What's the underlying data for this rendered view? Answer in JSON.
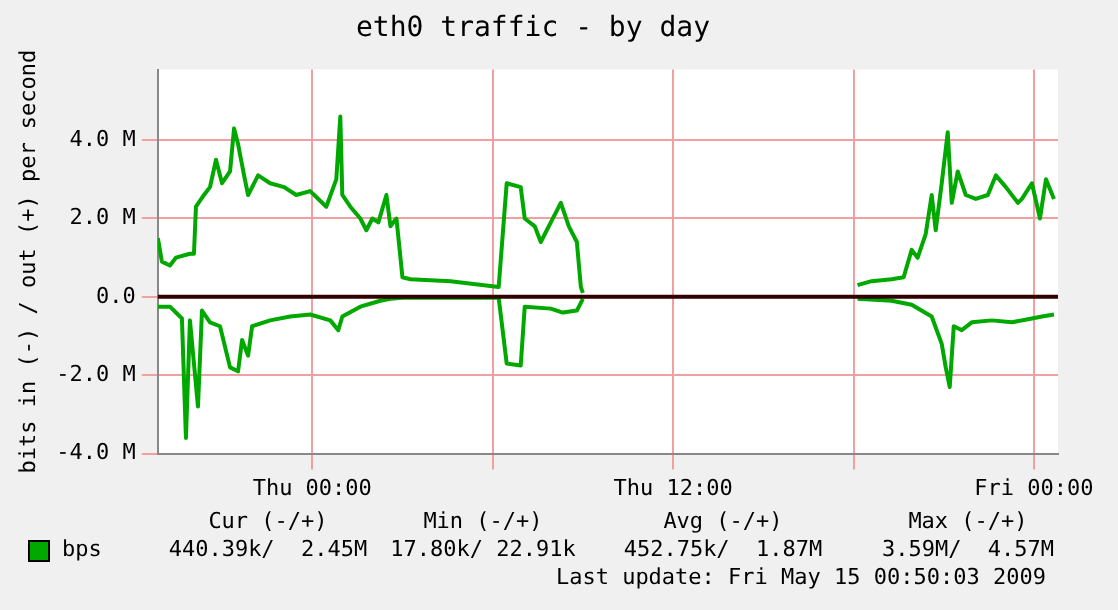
{
  "chart_data": {
    "type": "line",
    "title": "eth0 traffic - by day",
    "ylabel": "bits in (-) / out (+) per second",
    "xlim": [
      "2009-05-13T18:52",
      "2009-05-15T00:48"
    ],
    "xticks": [
      {
        "value": "2009-05-14T00:00",
        "label": "Thu 00:00"
      },
      {
        "value": "2009-05-14T06:00",
        "label": null
      },
      {
        "value": "2009-05-14T12:00",
        "label": "Thu 12:00"
      },
      {
        "value": "2009-05-14T18:00",
        "label": null
      },
      {
        "value": "2009-05-15T00:00",
        "label": "Fri 00:00"
      }
    ],
    "ylim": [
      -4,
      5.8
    ],
    "yticks": [
      {
        "value": -4,
        "label": "-4.0 M"
      },
      {
        "value": -2,
        "label": "-2.0 M"
      },
      {
        "value": 0,
        "label": "0.0"
      },
      {
        "value": 2,
        "label": "2.0 M"
      },
      {
        "value": 4,
        "label": "4.0 M"
      }
    ],
    "grid": true,
    "legend": "bottom",
    "marker": "none",
    "line_style": "solid",
    "series": [
      {
        "name": "bps",
        "color": "#00a800",
        "x": [
          "2009-05-13T18:52",
          "2009-05-13T19:00",
          "2009-05-13T19:16",
          "2009-05-13T19:28",
          "2009-05-13T19:56",
          "2009-05-13T20:04",
          "2009-05-13T20:08",
          "2009-05-13T20:24",
          "2009-05-13T20:36",
          "2009-05-13T20:48",
          "2009-05-13T21:00",
          "2009-05-13T21:16",
          "2009-05-13T21:24",
          "2009-05-13T21:32",
          "2009-05-13T21:44",
          "2009-05-13T21:52",
          "2009-05-13T22:12",
          "2009-05-13T22:36",
          "2009-05-13T23:04",
          "2009-05-13T23:28",
          "2009-05-13T23:56",
          "2009-05-14T00:28",
          "2009-05-14T00:48",
          "2009-05-14T00:56",
          "2009-05-14T01:00",
          "2009-05-14T01:16",
          "2009-05-14T01:36",
          "2009-05-14T01:48",
          "2009-05-14T02:00",
          "2009-05-14T02:12",
          "2009-05-14T02:28",
          "2009-05-14T02:36",
          "2009-05-14T02:48",
          "2009-05-14T03:00",
          "2009-05-14T03:16",
          "2009-05-14T04:36",
          "2009-05-14T06:12",
          "2009-05-14T06:28",
          "2009-05-14T06:56",
          "2009-05-14T07:04",
          "2009-05-14T07:24",
          "2009-05-14T07:36",
          "2009-05-14T07:56",
          "2009-05-14T08:16",
          "2009-05-14T08:32",
          "2009-05-14T08:48",
          "2009-05-14T08:56",
          "2009-05-14T09:00",
          "2009-05-14T13:00",
          "2009-05-14T18:08",
          "2009-05-14T18:36",
          "2009-05-14T19:16",
          "2009-05-14T19:40",
          "2009-05-14T19:56",
          "2009-05-14T20:08",
          "2009-05-14T20:24",
          "2009-05-14T20:36",
          "2009-05-14T20:44",
          "2009-05-14T20:56",
          "2009-05-14T21:08",
          "2009-05-14T21:16",
          "2009-05-14T21:28",
          "2009-05-14T21:44",
          "2009-05-14T22:04",
          "2009-05-14T22:28",
          "2009-05-14T22:44",
          "2009-05-14T23:04",
          "2009-05-14T23:28",
          "2009-05-14T23:36",
          "2009-05-14T23:56",
          "2009-05-15T00:12",
          "2009-05-15T00:24",
          "2009-05-15T00:40"
        ],
        "values": [
          1.5,
          0.9,
          0.8,
          1.0,
          1.1,
          1.1,
          2.3,
          2.6,
          2.8,
          3.5,
          2.9,
          3.2,
          4.3,
          3.9,
          3.1,
          2.6,
          3.1,
          2.9,
          2.8,
          2.6,
          2.7,
          2.3,
          3.0,
          4.6,
          2.6,
          2.3,
          2.0,
          1.7,
          2.0,
          1.9,
          2.6,
          1.8,
          2.0,
          0.5,
          0.45,
          0.4,
          0.25,
          2.9,
          2.8,
          2.0,
          1.8,
          1.4,
          1.9,
          2.4,
          1.8,
          1.4,
          0.25,
          0.1,
          null,
          0.3,
          0.4,
          0.45,
          0.5,
          1.2,
          1.0,
          1.6,
          2.6,
          1.7,
          2.9,
          4.2,
          2.4,
          3.2,
          2.6,
          2.5,
          2.6,
          3.1,
          2.8,
          2.4,
          2.5,
          2.9,
          2.0,
          3.0,
          2.5
        ]
      },
      {
        "color": "#00a800",
        "x": [
          "2009-05-13T18:52",
          "2009-05-13T19:16",
          "2009-05-13T19:32",
          "2009-05-13T19:40",
          "2009-05-13T19:48",
          "2009-05-13T19:56",
          "2009-05-13T20:12",
          "2009-05-13T20:20",
          "2009-05-13T20:36",
          "2009-05-13T20:56",
          "2009-05-13T21:16",
          "2009-05-13T21:32",
          "2009-05-13T21:40",
          "2009-05-13T21:52",
          "2009-05-13T22:00",
          "2009-05-13T22:36",
          "2009-05-13T23:16",
          "2009-05-13T23:56",
          "2009-05-14T00:36",
          "2009-05-14T00:52",
          "2009-05-14T01:00",
          "2009-05-14T01:36",
          "2009-05-14T02:16",
          "2009-05-14T02:36",
          "2009-05-14T03:00",
          "2009-05-14T06:12",
          "2009-05-14T06:28",
          "2009-05-14T06:56",
          "2009-05-14T07:04",
          "2009-05-14T07:56",
          "2009-05-14T08:20",
          "2009-05-14T08:48",
          "2009-05-14T09:00",
          "2009-05-14T13:00",
          "2009-05-14T18:08",
          "2009-05-14T19:16",
          "2009-05-14T19:56",
          "2009-05-14T20:36",
          "2009-05-14T20:56",
          "2009-05-14T21:04",
          "2009-05-14T21:12",
          "2009-05-14T21:20",
          "2009-05-14T21:36",
          "2009-05-14T21:56",
          "2009-05-14T22:36",
          "2009-05-14T23:16",
          "2009-05-14T23:56",
          "2009-05-15T00:16",
          "2009-05-15T00:40"
        ],
        "values": [
          -0.25,
          -0.25,
          -0.45,
          -0.55,
          -3.6,
          -0.6,
          -2.8,
          -0.35,
          -0.65,
          -0.75,
          -1.8,
          -1.9,
          -1.1,
          -1.5,
          -0.75,
          -0.6,
          -0.5,
          -0.45,
          -0.6,
          -0.85,
          -0.5,
          -0.25,
          -0.1,
          -0.05,
          -0.02,
          -0.02,
          -1.7,
          -1.75,
          -0.25,
          -0.3,
          -0.4,
          -0.35,
          -0.05,
          null,
          -0.05,
          -0.1,
          -0.2,
          -0.5,
          -1.2,
          -1.8,
          -2.3,
          -0.75,
          -0.85,
          -0.65,
          -0.6,
          -0.65,
          -0.55,
          -0.5,
          -0.45
        ]
      }
    ],
    "ref_lines": [
      {
        "axis": "y",
        "value": 0,
        "color": "#330000"
      }
    ],
    "annotations": [
      "Cur (-/+)",
      "Min (-/+)",
      "Avg (-/+)",
      "Max (-/+)",
      "440.39k/  2.45M",
      "17.80k/ 22.91k",
      "452.75k/  1.87M",
      "3.59M/  4.57M",
      "Last update: Fri May 15 00:50:03 2009"
    ]
  }
}
